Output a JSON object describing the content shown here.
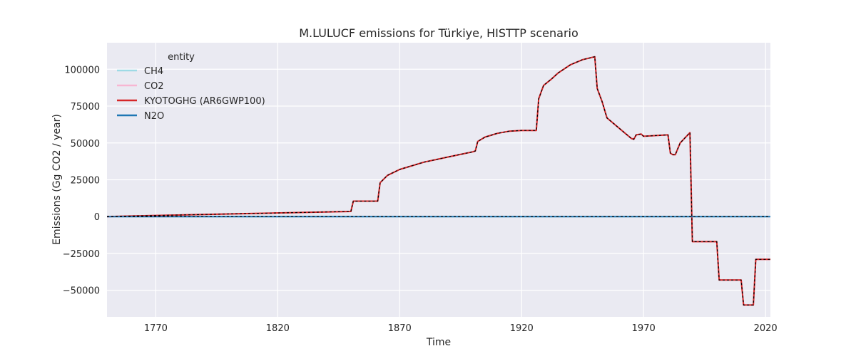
{
  "chart_data": {
    "type": "line",
    "title": "M.LULUCF emissions for Türkiye, HISTTP scenario",
    "xlabel": "Time",
    "ylabel": "Emissions (Gg CO2 / year)",
    "xlim": [
      1750,
      2022
    ],
    "ylim": [
      -68000,
      118000
    ],
    "xticks": [
      1770,
      1820,
      1870,
      1920,
      1970,
      2020
    ],
    "yticks": [
      -50000,
      -25000,
      0,
      25000,
      50000,
      75000,
      100000
    ],
    "ytick_labels": [
      "−50000",
      "−25000",
      "0",
      "25000",
      "50000",
      "75000",
      "100000"
    ],
    "grid": true,
    "legend": {
      "title": "entity",
      "position": "top-left"
    },
    "series": [
      {
        "name": "CH4",
        "color": "#9edae5",
        "points": [
          [
            1750,
            0
          ],
          [
            2022,
            0
          ]
        ]
      },
      {
        "name": "CO2",
        "color": "#f7b6d2",
        "points": [
          [
            1750,
            0
          ],
          [
            1760,
            400
          ],
          [
            1800,
            1800
          ],
          [
            1850,
            3500
          ],
          [
            1851,
            10500
          ],
          [
            1861,
            10500
          ],
          [
            1862,
            23000
          ],
          [
            1865,
            28000
          ],
          [
            1870,
            32000
          ],
          [
            1880,
            37000
          ],
          [
            1890,
            40500
          ],
          [
            1900,
            44000
          ],
          [
            1901,
            44500
          ],
          [
            1902,
            51000
          ],
          [
            1905,
            54000
          ],
          [
            1910,
            56500
          ],
          [
            1915,
            58000
          ],
          [
            1920,
            58500
          ],
          [
            1926,
            58500
          ],
          [
            1927,
            80000
          ],
          [
            1929,
            89000
          ],
          [
            1932,
            93000
          ],
          [
            1935,
            97500
          ],
          [
            1940,
            103000
          ],
          [
            1945,
            106500
          ],
          [
            1950,
            108500
          ],
          [
            1951,
            87000
          ],
          [
            1953,
            78000
          ],
          [
            1955,
            67000
          ],
          [
            1960,
            60000
          ],
          [
            1965,
            53000
          ],
          [
            1966,
            52500
          ],
          [
            1967,
            55500
          ],
          [
            1969,
            56000
          ],
          [
            1970,
            54500
          ],
          [
            1975,
            55000
          ],
          [
            1980,
            55500
          ],
          [
            1981,
            43000
          ],
          [
            1982,
            42000
          ],
          [
            1983,
            42000
          ],
          [
            1985,
            50000
          ],
          [
            1989,
            57000
          ],
          [
            1990,
            -17000
          ],
          [
            2000,
            -17000
          ],
          [
            2001,
            -43000
          ],
          [
            2010,
            -43000
          ],
          [
            2011,
            -60000
          ],
          [
            2015,
            -60000
          ],
          [
            2016,
            -29000
          ],
          [
            2022,
            -29000
          ]
        ]
      },
      {
        "name": "KYOTOGHG (AR6GWP100)",
        "color": "#d62728",
        "points": [
          [
            1750,
            0
          ],
          [
            1760,
            400
          ],
          [
            1800,
            1800
          ],
          [
            1850,
            3500
          ],
          [
            1851,
            10500
          ],
          [
            1861,
            10500
          ],
          [
            1862,
            23000
          ],
          [
            1865,
            28000
          ],
          [
            1870,
            32000
          ],
          [
            1880,
            37000
          ],
          [
            1890,
            40500
          ],
          [
            1900,
            44000
          ],
          [
            1901,
            44500
          ],
          [
            1902,
            51000
          ],
          [
            1905,
            54000
          ],
          [
            1910,
            56500
          ],
          [
            1915,
            58000
          ],
          [
            1920,
            58500
          ],
          [
            1926,
            58500
          ],
          [
            1927,
            80000
          ],
          [
            1929,
            89000
          ],
          [
            1932,
            93000
          ],
          [
            1935,
            97500
          ],
          [
            1940,
            103000
          ],
          [
            1945,
            106500
          ],
          [
            1950,
            108500
          ],
          [
            1951,
            87000
          ],
          [
            1953,
            78000
          ],
          [
            1955,
            67000
          ],
          [
            1960,
            60000
          ],
          [
            1965,
            53000
          ],
          [
            1966,
            52500
          ],
          [
            1967,
            55500
          ],
          [
            1969,
            56000
          ],
          [
            1970,
            54500
          ],
          [
            1975,
            55000
          ],
          [
            1980,
            55500
          ],
          [
            1981,
            43000
          ],
          [
            1982,
            42000
          ],
          [
            1983,
            42000
          ],
          [
            1985,
            50000
          ],
          [
            1989,
            57000
          ],
          [
            1990,
            -17000
          ],
          [
            2000,
            -17000
          ],
          [
            2001,
            -43000
          ],
          [
            2010,
            -43000
          ],
          [
            2011,
            -60000
          ],
          [
            2015,
            -60000
          ],
          [
            2016,
            -29000
          ],
          [
            2022,
            -29000
          ]
        ]
      },
      {
        "name": "N2O",
        "color": "#1f77b4",
        "points": [
          [
            1750,
            0
          ],
          [
            2022,
            0
          ]
        ]
      }
    ],
    "overlays": [
      {
        "color": "#000000",
        "dash": "3,3",
        "source_series": "KYOTOGHG (AR6GWP100)"
      },
      {
        "color": "#000000",
        "dash": "3,3",
        "source_series": "N2O"
      }
    ]
  }
}
